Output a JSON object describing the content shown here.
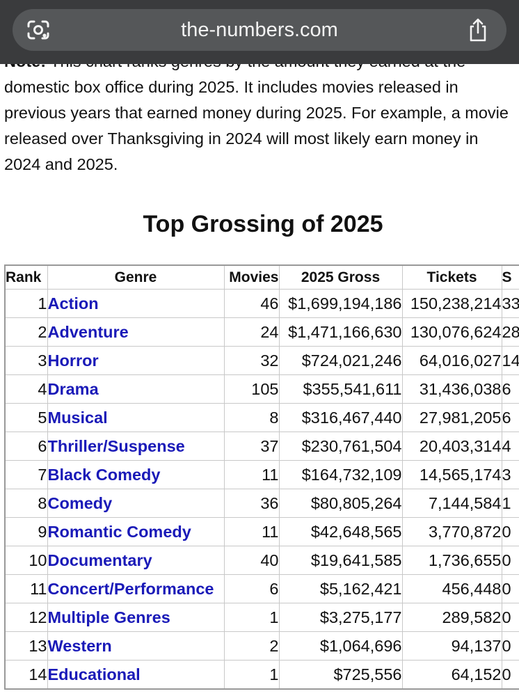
{
  "browser": {
    "url": "the-numbers.com",
    "lens_icon": "google-lens-icon",
    "share_icon": "share-icon"
  },
  "intro": {
    "note_label": "Note:",
    "text": "This chart ranks genres by the amount they earned at the domestic box office during 2025. It includes movies released in previous years that earned money during 2025. For example, a movie released over Thanksgiving in 2024 will most likely earn money in 2024 and 2025."
  },
  "table": {
    "title": "Top Grossing of 2025",
    "headers": {
      "rank": "Rank",
      "genre": "Genre",
      "movies": "Movies",
      "gross": "2025 Gross",
      "tickets": "Tickets",
      "share": "S"
    },
    "rows": [
      {
        "rank": "1",
        "genre": "Action",
        "movies": "46",
        "gross": "$1,699,194,186",
        "tickets": "150,238,214",
        "share": "33"
      },
      {
        "rank": "2",
        "genre": "Adventure",
        "movies": "24",
        "gross": "$1,471,166,630",
        "tickets": "130,076,624",
        "share": "28"
      },
      {
        "rank": "3",
        "genre": "Horror",
        "movies": "32",
        "gross": "$724,021,246",
        "tickets": "64,016,027",
        "share": "14"
      },
      {
        "rank": "4",
        "genre": "Drama",
        "movies": "105",
        "gross": "$355,541,611",
        "tickets": "31,436,038",
        "share": "6"
      },
      {
        "rank": "5",
        "genre": "Musical",
        "movies": "8",
        "gross": "$316,467,440",
        "tickets": "27,981,205",
        "share": "6"
      },
      {
        "rank": "6",
        "genre": "Thriller/Suspense",
        "movies": "37",
        "gross": "$230,761,504",
        "tickets": "20,403,314",
        "share": "4"
      },
      {
        "rank": "7",
        "genre": "Black Comedy",
        "movies": "11",
        "gross": "$164,732,109",
        "tickets": "14,565,174",
        "share": "3"
      },
      {
        "rank": "8",
        "genre": "Comedy",
        "movies": "36",
        "gross": "$80,805,264",
        "tickets": "7,144,584",
        "share": "1"
      },
      {
        "rank": "9",
        "genre": "Romantic Comedy",
        "movies": "11",
        "gross": "$42,648,565",
        "tickets": "3,770,872",
        "share": "0"
      },
      {
        "rank": "10",
        "genre": "Documentary",
        "movies": "40",
        "gross": "$19,641,585",
        "tickets": "1,736,655",
        "share": "0"
      },
      {
        "rank": "11",
        "genre": "Concert/Performance",
        "movies": "6",
        "gross": "$5,162,421",
        "tickets": "456,448",
        "share": "0"
      },
      {
        "rank": "12",
        "genre": "Multiple Genres",
        "movies": "1",
        "gross": "$3,275,177",
        "tickets": "289,582",
        "share": "0"
      },
      {
        "rank": "13",
        "genre": "Western",
        "movies": "2",
        "gross": "$1,064,696",
        "tickets": "94,137",
        "share": "0"
      },
      {
        "rank": "14",
        "genre": "Educational",
        "movies": "1",
        "gross": "$725,556",
        "tickets": "64,152",
        "share": "0"
      }
    ]
  }
}
